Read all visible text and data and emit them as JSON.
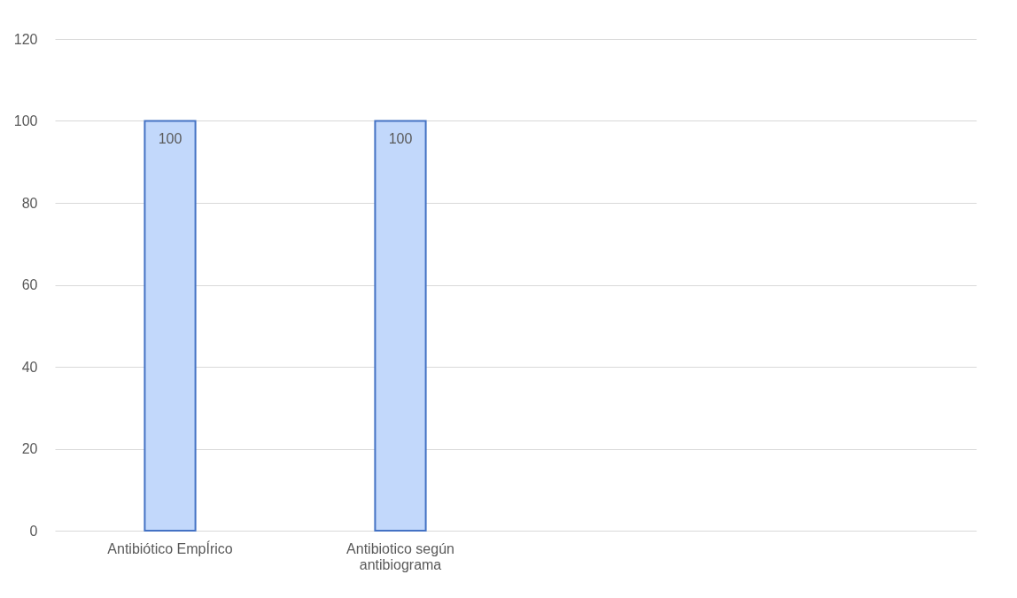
{
  "chart_data": {
    "type": "bar",
    "categories": [
      "Antibiótico EmpÍrico",
      "Antibiotico según antibiograma",
      null,
      null
    ],
    "values": [
      100,
      100,
      null,
      null
    ],
    "color": "#c2d8fb",
    "ylim": [
      0,
      120
    ],
    "yticks": [
      0,
      20,
      40,
      60,
      80,
      100,
      120
    ],
    "grid": "y",
    "data_labels": true
  }
}
